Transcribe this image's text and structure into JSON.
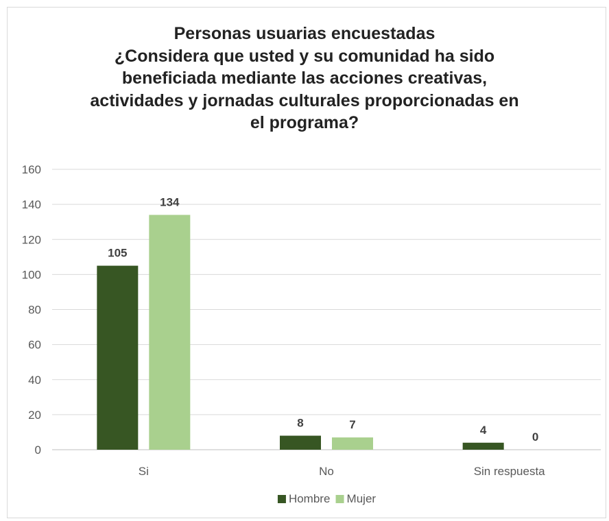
{
  "chart_data": {
    "type": "bar",
    "title_lines": [
      "Personas usuarias encuestadas",
      "¿Considera que usted y su comunidad ha sido",
      "beneficiada mediante las acciones creativas,",
      "actividades y jornadas culturales proporcionadas en",
      "el programa?"
    ],
    "categories": [
      "Si",
      "No",
      "Sin respuesta"
    ],
    "series": [
      {
        "name": "Hombre",
        "values": [
          105,
          8,
          4
        ],
        "color": "#375623"
      },
      {
        "name": "Mujer",
        "values": [
          134,
          7,
          0
        ],
        "color": "#a9d08e"
      }
    ],
    "ylim": [
      0,
      160
    ],
    "yticks": [
      0,
      20,
      40,
      60,
      80,
      100,
      120,
      140,
      160
    ],
    "grid": true,
    "legend_position": "bottom",
    "data_labels": true
  }
}
